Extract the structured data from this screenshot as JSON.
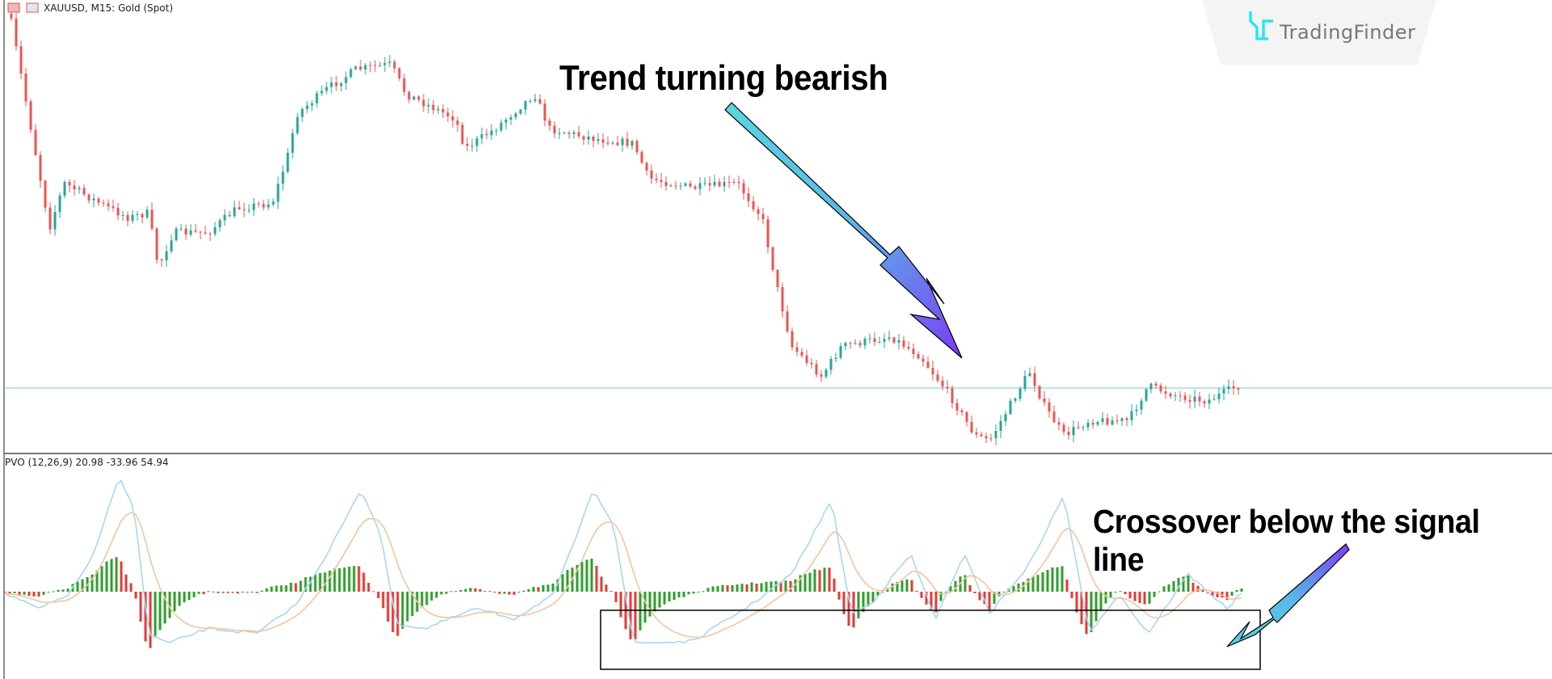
{
  "header": {
    "symbol_label": "XAUUSD, M15:  Gold (Spot)"
  },
  "indicator": {
    "label": "PVO (12,26,9) 20.98 -33.96 54.94"
  },
  "annotations": {
    "trend": "Trend turning bearish",
    "crossover": "Crossover below the signal line"
  },
  "logo": {
    "text": "TradingFinder"
  },
  "colors": {
    "bull_candle": "#26a69a",
    "bear_candle": "#ef5350",
    "hist_up": "#2e9e2e",
    "hist_down": "#e53935",
    "pvo_line": "#a9d6f2",
    "signal_line": "#f5c4a0",
    "horizontal_line": "#8fd6cf",
    "arrow_start": "#5ad6e0",
    "arrow_end": "#7a3cf5",
    "logo_accent": "#27e6f0"
  },
  "chart_data": {
    "type": "candlestick",
    "symbol": "XAUUSD",
    "timeframe": "M15",
    "instrument": "Gold (Spot)",
    "trend": "down",
    "indicator": {
      "name": "PVO",
      "params": [
        12,
        26,
        9
      ],
      "values": [
        20.98,
        -33.96,
        54.94
      ],
      "type": "histogram+lines"
    }
  }
}
